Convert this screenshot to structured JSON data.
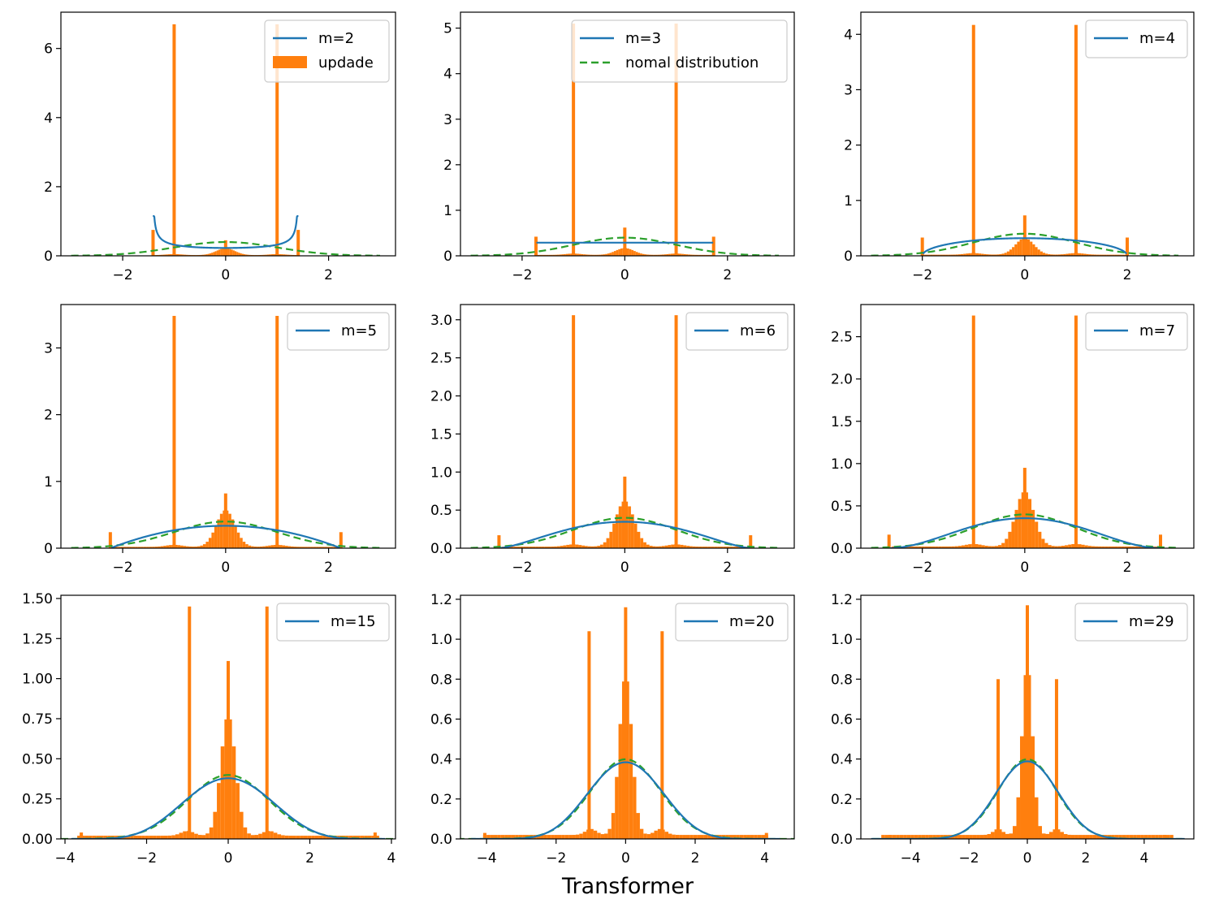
{
  "figure": {
    "xlabel": "Transformer"
  },
  "colors": {
    "line": "#1f77b4",
    "hist": "#ff7f0e",
    "normal": "#2ca02c"
  },
  "legend_labels": {
    "update": "updade",
    "normal": "nomal distribution"
  },
  "chart_data": [
    {
      "type": "bar",
      "m": 2,
      "legend": "m=2",
      "show_update": true,
      "show_normal": false,
      "xlim": [
        -3.2,
        3.3
      ],
      "ylim": [
        0,
        7.05
      ],
      "xticks": [
        -2,
        0,
        2
      ],
      "yticks": [
        0,
        2,
        4,
        6
      ],
      "ytick_labels": [
        "0",
        "2",
        "4",
        "6"
      ],
      "spikes": [
        [
          -1,
          6.7
        ],
        [
          1,
          6.7
        ],
        [
          -1.41,
          0.75
        ],
        [
          1.41,
          0.75
        ],
        [
          0,
          0.45
        ]
      ],
      "central_spread": 1.4,
      "central_peak": 0.2
    },
    {
      "type": "bar",
      "m": 3,
      "legend": "m=3",
      "show_update": false,
      "show_normal": true,
      "xlim": [
        -3.2,
        3.3
      ],
      "ylim": [
        0,
        5.35
      ],
      "xticks": [
        -2,
        0,
        2
      ],
      "yticks": [
        0,
        1,
        2,
        3,
        4,
        5
      ],
      "ytick_labels": [
        "0",
        "1",
        "2",
        "3",
        "4",
        "5"
      ],
      "spikes": [
        [
          -1,
          5.1
        ],
        [
          1,
          5.1
        ],
        [
          -1.73,
          0.42
        ],
        [
          1.73,
          0.42
        ],
        [
          0,
          0.62
        ]
      ],
      "central_spread": 1.7,
      "central_peak": 0.15
    },
    {
      "type": "bar",
      "m": 4,
      "legend": "m=4",
      "show_update": false,
      "show_normal": false,
      "xlim": [
        -3.2,
        3.3
      ],
      "ylim": [
        0,
        4.4
      ],
      "xticks": [
        -2,
        0,
        2
      ],
      "yticks": [
        0,
        1,
        2,
        3,
        4
      ],
      "ytick_labels": [
        "0",
        "1",
        "2",
        "3",
        "4"
      ],
      "spikes": [
        [
          -1,
          4.17
        ],
        [
          1,
          4.17
        ],
        [
          -2,
          0.33
        ],
        [
          2,
          0.33
        ],
        [
          0,
          0.73
        ]
      ],
      "central_spread": 2.0,
      "central_peak": 0.3
    },
    {
      "type": "bar",
      "m": 5,
      "legend": "m=5",
      "show_update": false,
      "show_normal": false,
      "xlim": [
        -3.2,
        3.3
      ],
      "ylim": [
        0,
        3.65
      ],
      "xticks": [
        -2,
        0,
        2
      ],
      "yticks": [
        0,
        1,
        2,
        3
      ],
      "ytick_labels": [
        "0",
        "1",
        "2",
        "3"
      ],
      "spikes": [
        [
          -1,
          3.48
        ],
        [
          1,
          3.48
        ],
        [
          -2.24,
          0.24
        ],
        [
          2.24,
          0.24
        ],
        [
          0,
          0.82
        ]
      ],
      "central_spread": 2.2,
      "central_peak": 0.55
    },
    {
      "type": "bar",
      "m": 6,
      "legend": "m=6",
      "show_update": false,
      "show_normal": false,
      "xlim": [
        -3.2,
        3.3
      ],
      "ylim": [
        0,
        3.2
      ],
      "xticks": [
        -2,
        0,
        2
      ],
      "yticks": [
        0,
        0.5,
        1,
        1.5,
        2,
        2.5,
        3
      ],
      "ytick_labels": [
        "0.0",
        "0.5",
        "1.0",
        "1.5",
        "2.0",
        "2.5",
        "3.0"
      ],
      "spikes": [
        [
          -1,
          3.06
        ],
        [
          1,
          3.06
        ],
        [
          -2.45,
          0.17
        ],
        [
          2.45,
          0.17
        ],
        [
          0,
          0.94
        ]
      ],
      "central_spread": 2.4,
      "central_peak": 0.6
    },
    {
      "type": "bar",
      "m": 7,
      "legend": "m=7",
      "show_update": false,
      "show_normal": false,
      "xlim": [
        -3.2,
        3.3
      ],
      "ylim": [
        0,
        2.88
      ],
      "xticks": [
        -2,
        0,
        2
      ],
      "yticks": [
        0,
        0.5,
        1,
        1.5,
        2,
        2.5
      ],
      "ytick_labels": [
        "0.0",
        "0.5",
        "1.0",
        "1.5",
        "2.0",
        "2.5"
      ],
      "spikes": [
        [
          -1,
          2.75
        ],
        [
          1,
          2.75
        ],
        [
          -2.65,
          0.16
        ],
        [
          2.65,
          0.16
        ],
        [
          0,
          0.95
        ]
      ],
      "central_spread": 2.6,
      "central_peak": 0.65
    },
    {
      "type": "bar",
      "m": 15,
      "legend": "m=15",
      "show_update": false,
      "show_normal": false,
      "xlim": [
        -4.1,
        4.1
      ],
      "ylim": [
        0,
        1.52
      ],
      "xticks": [
        -4,
        -2,
        0,
        2,
        4
      ],
      "yticks": [
        0,
        0.25,
        0.5,
        0.75,
        1,
        1.25,
        1.5
      ],
      "ytick_labels": [
        "0.00",
        "0.25",
        "0.50",
        "0.75",
        "1.00",
        "1.25",
        "1.50"
      ],
      "spikes": [
        [
          -0.95,
          1.45
        ],
        [
          0.95,
          1.45
        ],
        [
          -3.6,
          0.04
        ],
        [
          3.6,
          0.04
        ],
        [
          0,
          1.11
        ]
      ],
      "central_spread": 3.7,
      "central_peak": 0.75
    },
    {
      "type": "bar",
      "m": 20,
      "legend": "m=20",
      "show_update": false,
      "show_normal": false,
      "xlim": [
        -4.75,
        4.85
      ],
      "ylim": [
        0,
        1.22
      ],
      "xticks": [
        -4,
        -2,
        0,
        2,
        4
      ],
      "yticks": [
        0,
        0.2,
        0.4,
        0.6,
        0.8,
        1,
        1.2
      ],
      "ytick_labels": [
        "0.0",
        "0.2",
        "0.4",
        "0.6",
        "0.8",
        "1.0",
        "1.2"
      ],
      "spikes": [
        [
          -1.05,
          1.04
        ],
        [
          1.05,
          1.04
        ],
        [
          -4.05,
          0.03
        ],
        [
          4.05,
          0.03
        ],
        [
          0,
          1.16
        ]
      ],
      "central_spread": 4.1,
      "central_peak": 0.8
    },
    {
      "type": "bar",
      "m": 29,
      "legend": "m=29",
      "show_update": false,
      "show_normal": false,
      "xlim": [
        -5.7,
        5.7
      ],
      "ylim": [
        0,
        1.22
      ],
      "xticks": [
        -4,
        -2,
        0,
        2,
        4
      ],
      "yticks": [
        0,
        0.2,
        0.4,
        0.6,
        0.8,
        1,
        1.2
      ],
      "ytick_labels": [
        "0.0",
        "0.2",
        "0.4",
        "0.6",
        "0.8",
        "1.0",
        "1.2"
      ],
      "spikes": [
        [
          -1.0,
          0.8
        ],
        [
          1.0,
          0.8
        ],
        [
          -4.7,
          0.02
        ],
        [
          4.7,
          0.02
        ],
        [
          0,
          1.17
        ]
      ],
      "central_spread": 5.0,
      "central_peak": 0.85
    }
  ]
}
